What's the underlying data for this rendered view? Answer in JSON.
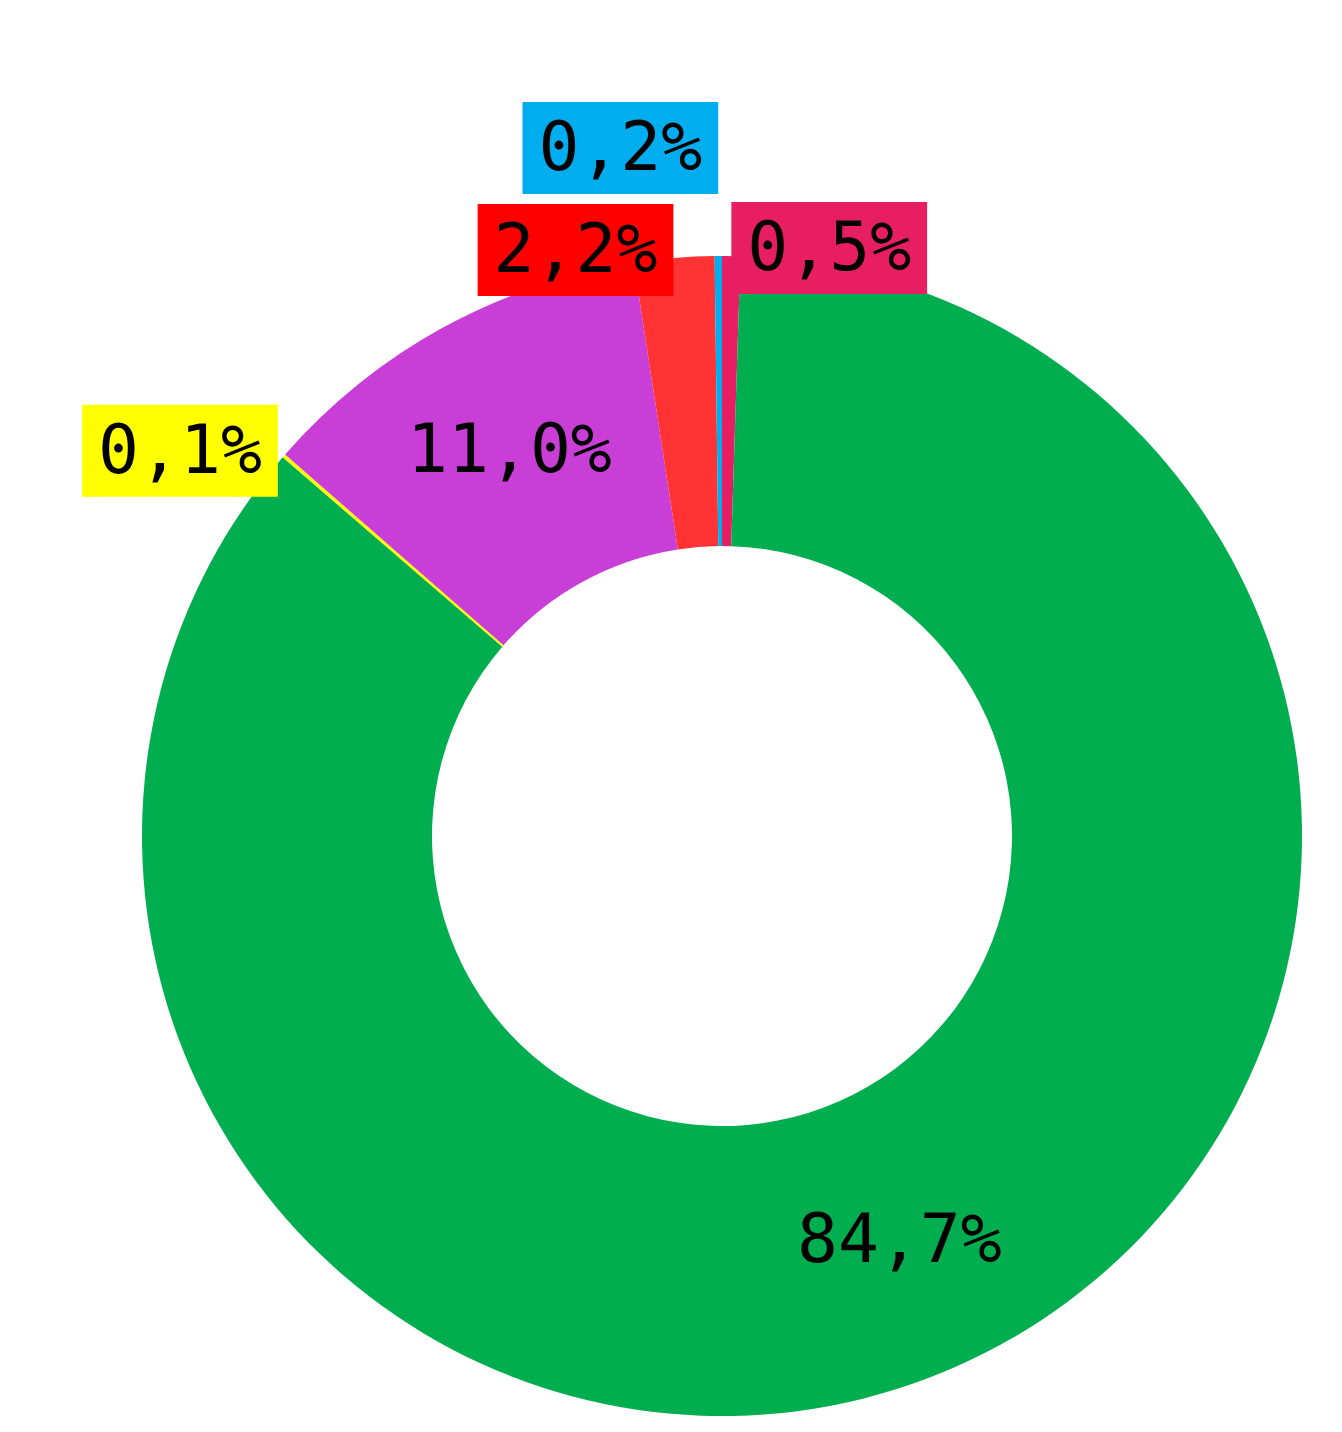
{
  "chart_data": {
    "type": "donut",
    "categories": [
      null,
      null,
      null,
      null,
      null,
      null
    ],
    "values": [
      0.5,
      84.7,
      0.1,
      11.0,
      2.2,
      0.2
    ],
    "colors": [
      "#e81e63",
      "#00ad4f",
      "#ffff00",
      "#c83ed6",
      "#ff3333",
      "#00aeef"
    ],
    "value_labels": [
      "0,5%",
      "84,7%",
      "0,1%",
      "11,0%",
      "2,2%",
      "0,2%"
    ]
  }
}
